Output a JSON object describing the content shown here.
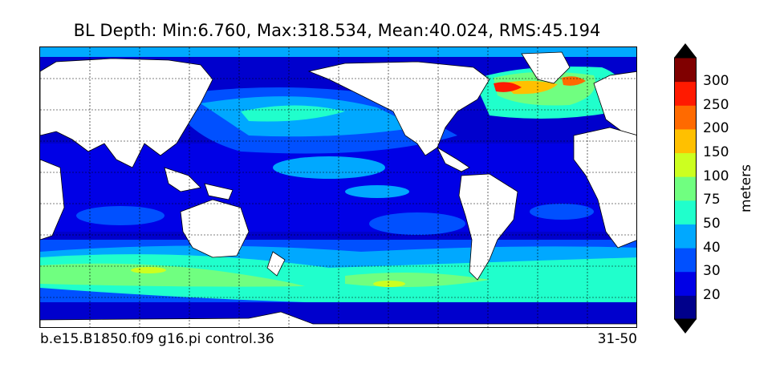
{
  "title": "BL Depth: Min:6.760, Max:318.534, Mean:40.024, RMS:45.194",
  "footer": {
    "case_name": "b.e15.B1850.f09 g16.pi control.36",
    "years": "31-50"
  },
  "colorbar": {
    "unit_label": "meters",
    "tick_labels": [
      "20",
      "30",
      "40",
      "50",
      "75",
      "100",
      "150",
      "200",
      "250",
      "300"
    ],
    "colors": [
      "#00008b",
      "#0000e6",
      "#0050ff",
      "#00a8ff",
      "#20ffcc",
      "#70ff80",
      "#ccff20",
      "#ffc000",
      "#ff6a00",
      "#ff1a00",
      "#800000"
    ],
    "under_color": "#000000",
    "over_color": "#000000"
  },
  "map": {
    "ocean_base_color": "#0000cd",
    "land_color": "#ffffff",
    "grid": true
  }
}
